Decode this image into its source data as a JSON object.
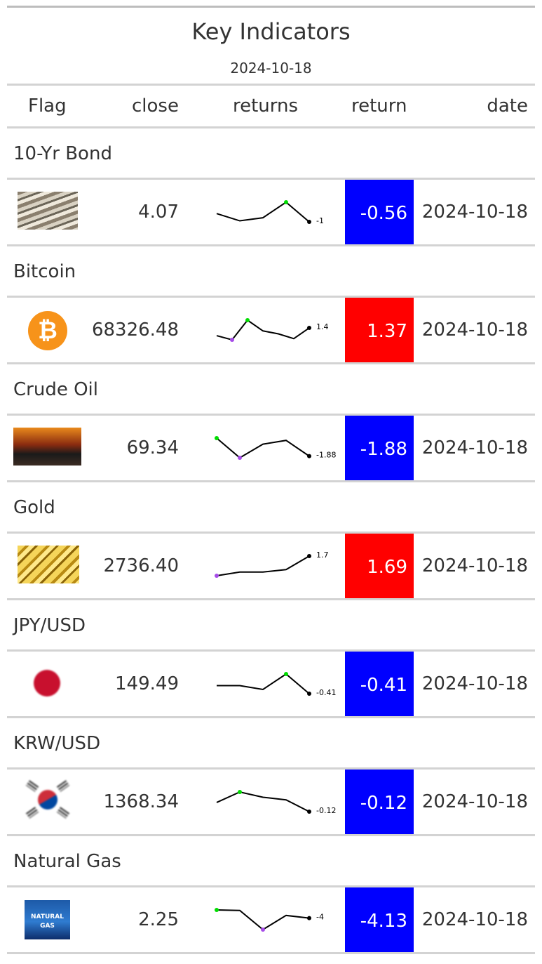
{
  "title": "Key Indicators",
  "subtitle": "2024-10-18",
  "columns": {
    "flag": "Flag",
    "close": "close",
    "returns": "returns",
    "return": "return",
    "date": "date"
  },
  "colors": {
    "positive": "#ff0000",
    "negative": "#0000ff",
    "high_point": "#00dd00",
    "low_point": "#a64ce8",
    "line": "#000000"
  },
  "rows": [
    {
      "group": "10-Yr Bond",
      "icon": "bond-notes-icon",
      "close": "4.07",
      "sparkline": [
        -0.2,
        -0.9,
        -0.6,
        0.9,
        -1
      ],
      "spark_label": "-1",
      "return": "-0.56",
      "return_value": -0.56,
      "date": "2024-10-18"
    },
    {
      "group": "Bitcoin",
      "icon": "bitcoin-logo-icon",
      "close": "68326.48",
      "sparkline": [
        0.1,
        -0.6,
        2.7,
        0.9,
        0.4,
        -0.4,
        1.4
      ],
      "spark_label": "1.4",
      "return": "1.37",
      "return_value": 1.37,
      "date": "2024-10-18"
    },
    {
      "group": "Crude Oil",
      "icon": "oil-barrels-icon",
      "close": "69.34",
      "sparkline": [
        0.5,
        -2.1,
        -0.3,
        0.2,
        -1.88
      ],
      "spark_label": "-1.88",
      "return": "-1.88",
      "return_value": -1.88,
      "date": "2024-10-18"
    },
    {
      "group": "Gold",
      "icon": "gold-bars-icon",
      "close": "2736.40",
      "sparkline": [
        0.9,
        1.05,
        1.05,
        1.15,
        1.7
      ],
      "spark_label": "1.7",
      "return": "1.69",
      "return_value": 1.69,
      "date": "2024-10-18"
    },
    {
      "group": "JPY/USD",
      "icon": "japan-flag-icon",
      "close": "149.49",
      "sparkline": [
        -0.2,
        -0.2,
        -0.3,
        0.1,
        -0.41
      ],
      "spark_label": "-0.41",
      "return": "-0.41",
      "return_value": -0.41,
      "date": "2024-10-18"
    },
    {
      "group": "KRW/USD",
      "icon": "korea-flag-icon",
      "close": "1368.34",
      "sparkline": [
        -0.05,
        0.03,
        -0.01,
        -0.03,
        -0.12
      ],
      "spark_label": "-0.12",
      "return": "-0.12",
      "return_value": -0.12,
      "date": "2024-10-18"
    },
    {
      "group": "Natural Gas",
      "icon": "natural-gas-icon",
      "icon_text": "NATURAL GAS",
      "close": "2.25",
      "sparkline": [
        0.6,
        0.3,
        -10.5,
        -2.5,
        -4
      ],
      "spark_label": "-4",
      "return": "-4.13",
      "return_value": -4.13,
      "date": "2024-10-18"
    }
  ]
}
